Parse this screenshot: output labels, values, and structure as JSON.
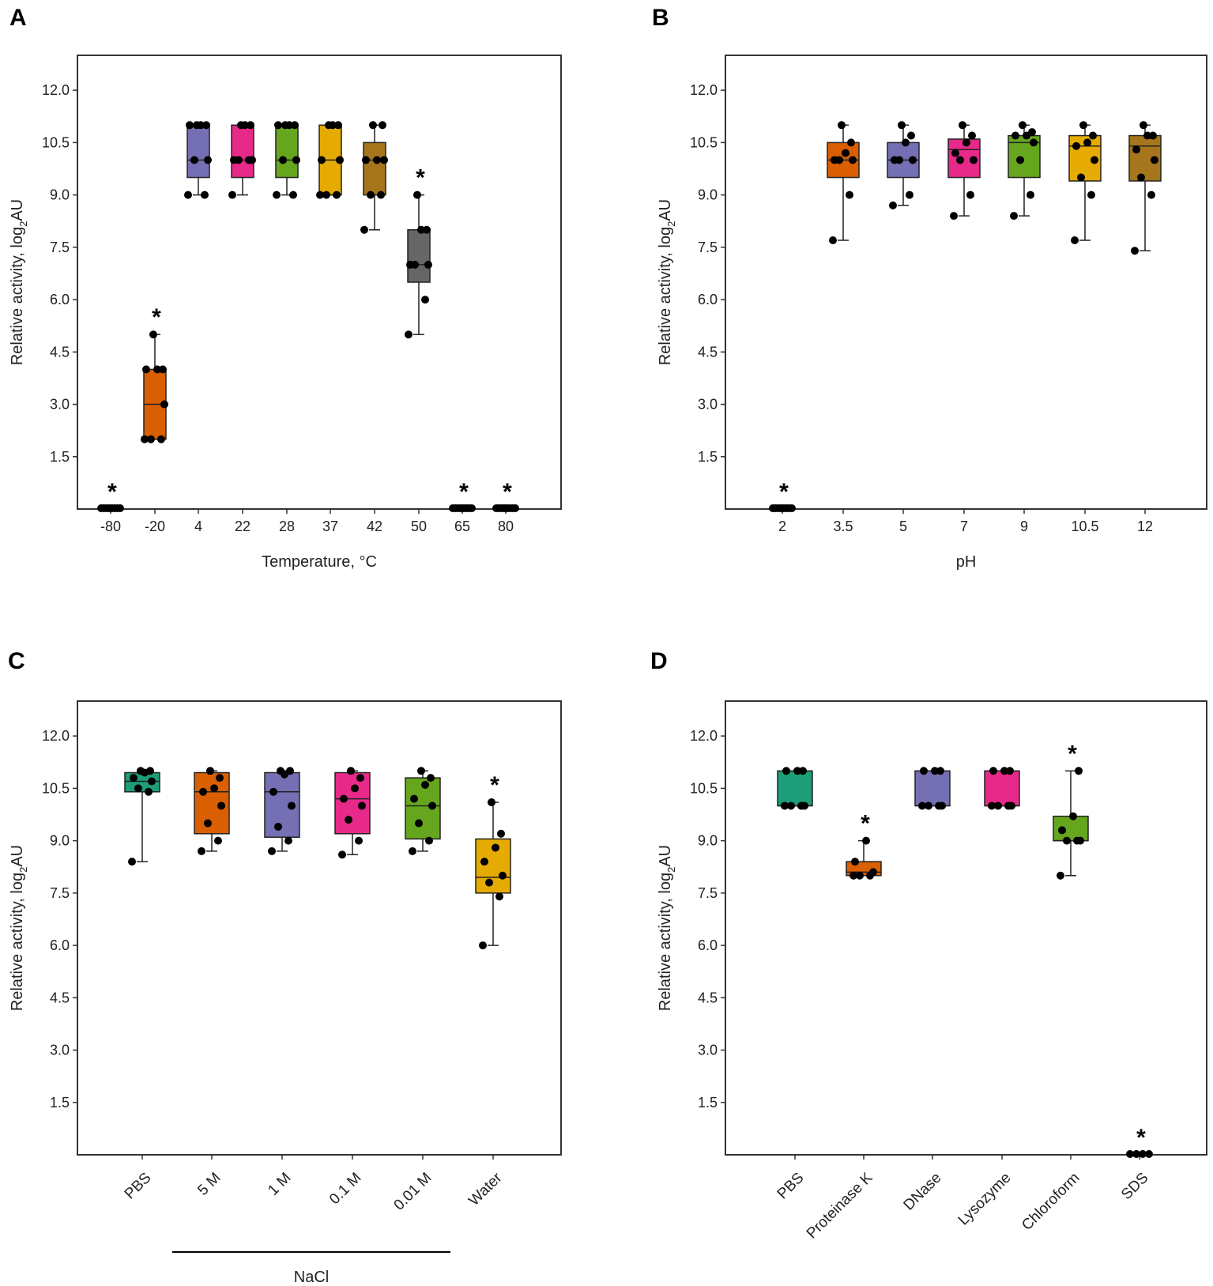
{
  "figure": {
    "colors": {
      "teal": "#1d9e78",
      "orange": "#d95f02",
      "purple": "#7570b3",
      "pink": "#e7298a",
      "green": "#66a61e",
      "yellow": "#e6ab02",
      "brown": "#a6761d",
      "gray": "#666666",
      "point": "#000000",
      "frame": "#333333"
    }
  },
  "chart_data": [
    {
      "panel": "A",
      "type": "box",
      "xlabel": "Temperature,  °C",
      "ylabel": {
        "main": "Relative  activity,  log",
        "sub": "2",
        "unit": "AU"
      },
      "ylim": [
        0,
        13
      ],
      "yticks": [
        "1.5",
        "3.0",
        "4.5",
        "6.0",
        "7.5",
        "9.0",
        "10.5",
        "12.0"
      ],
      "label_rotation": 0,
      "categories": [
        {
          "label": "-80",
          "color": "",
          "q1": 0,
          "median": 0,
          "q3": 0,
          "whisker": [
            0,
            0
          ],
          "points": [
            0,
            0,
            0,
            0,
            0,
            0,
            0,
            0
          ],
          "star": "*"
        },
        {
          "label": "-20",
          "color": "orange",
          "q1": 2,
          "median": 3,
          "q3": 4,
          "whisker": [
            2,
            5
          ],
          "points": [
            2,
            2,
            2,
            3,
            4,
            4,
            4,
            5
          ],
          "star": "*"
        },
        {
          "label": "4",
          "color": "purple",
          "q1": 9.5,
          "median": 10,
          "q3": 11,
          "whisker": [
            9,
            11
          ],
          "points": [
            9,
            9,
            10,
            10,
            11,
            11,
            11,
            11
          ],
          "star": ""
        },
        {
          "label": "22",
          "color": "pink",
          "q1": 9.5,
          "median": 10,
          "q3": 11,
          "whisker": [
            9,
            11
          ],
          "points": [
            9,
            10,
            10,
            10,
            10,
            11,
            11,
            11
          ],
          "star": ""
        },
        {
          "label": "28",
          "color": "green",
          "q1": 9.5,
          "median": 10,
          "q3": 11,
          "whisker": [
            9,
            11
          ],
          "points": [
            9,
            9,
            10,
            10,
            11,
            11,
            11,
            11
          ],
          "star": ""
        },
        {
          "label": "37",
          "color": "yellow",
          "q1": 9,
          "median": 10,
          "q3": 11,
          "whisker": [
            9,
            11
          ],
          "points": [
            9,
            9,
            9,
            10,
            10,
            11,
            11,
            11
          ],
          "star": ""
        },
        {
          "label": "42",
          "color": "brown",
          "q1": 9,
          "median": 10,
          "q3": 10.5,
          "whisker": [
            8,
            11
          ],
          "points": [
            8,
            9,
            9,
            10,
            10,
            10,
            11,
            11
          ],
          "star": ""
        },
        {
          "label": "50",
          "color": "gray",
          "q1": 6.5,
          "median": 7,
          "q3": 8,
          "whisker": [
            5,
            9
          ],
          "points": [
            5,
            6,
            7,
            7,
            7,
            8,
            8,
            9
          ],
          "star": "*"
        },
        {
          "label": "65",
          "color": "",
          "q1": 0,
          "median": 0,
          "q3": 0,
          "whisker": [
            0,
            0
          ],
          "points": [
            0,
            0,
            0,
            0,
            0,
            0,
            0,
            0
          ],
          "star": "*"
        },
        {
          "label": "80",
          "color": "",
          "q1": 0,
          "median": 0,
          "q3": 0,
          "whisker": [
            0,
            0
          ],
          "points": [
            0,
            0,
            0,
            0,
            0,
            0,
            0,
            0
          ],
          "star": "*"
        }
      ]
    },
    {
      "panel": "B",
      "type": "box",
      "xlabel": "pH",
      "ylabel": {
        "main": "Relative  activity,  log",
        "sub": "2",
        "unit": "AU"
      },
      "ylim": [
        0,
        13
      ],
      "yticks": [
        "1.5",
        "3.0",
        "4.5",
        "6.0",
        "7.5",
        "9.0",
        "10.5",
        "12.0"
      ],
      "label_rotation": 0,
      "categories": [
        {
          "label": "2",
          "color": "",
          "q1": 0,
          "median": 0,
          "q3": 0,
          "whisker": [
            0,
            0
          ],
          "points": [
            0,
            0,
            0,
            0,
            0,
            0,
            0,
            0
          ],
          "star": "*"
        },
        {
          "label": "3.5",
          "color": "orange",
          "q1": 9.5,
          "median": 10,
          "q3": 10.5,
          "whisker": [
            7.7,
            11
          ],
          "points": [
            7.7,
            9,
            10,
            10,
            10,
            10.2,
            10.5,
            11
          ],
          "star": ""
        },
        {
          "label": "5",
          "color": "purple",
          "q1": 9.5,
          "median": 10,
          "q3": 10.5,
          "whisker": [
            8.7,
            11
          ],
          "points": [
            8.7,
            9,
            10,
            10,
            10,
            10.5,
            10.7,
            11
          ],
          "star": ""
        },
        {
          "label": "7",
          "color": "pink",
          "q1": 9.5,
          "median": 10.3,
          "q3": 10.6,
          "whisker": [
            8.4,
            11
          ],
          "points": [
            8.4,
            9,
            10,
            10,
            10.2,
            10.5,
            10.7,
            11
          ],
          "star": ""
        },
        {
          "label": "9",
          "color": "green",
          "q1": 9.5,
          "median": 10.5,
          "q3": 10.7,
          "whisker": [
            8.4,
            11
          ],
          "points": [
            8.4,
            9,
            10,
            10.5,
            10.7,
            10.7,
            10.8,
            11
          ],
          "star": ""
        },
        {
          "label": "10.5",
          "color": "yellow",
          "q1": 9.4,
          "median": 10.4,
          "q3": 10.7,
          "whisker": [
            7.7,
            11
          ],
          "points": [
            7.7,
            9,
            9.5,
            10,
            10.4,
            10.5,
            10.7,
            11
          ],
          "star": ""
        },
        {
          "label": "12",
          "color": "brown",
          "q1": 9.4,
          "median": 10.4,
          "q3": 10.7,
          "whisker": [
            7.4,
            11
          ],
          "points": [
            7.4,
            9,
            9.5,
            10,
            10.3,
            10.7,
            10.7,
            11
          ],
          "star": ""
        }
      ]
    },
    {
      "panel": "C",
      "type": "box",
      "xlabel": "",
      "group_label": "NaCl",
      "ylabel": {
        "main": "Relative  activity,  log",
        "sub": "2",
        "unit": "AU"
      },
      "ylim": [
        0,
        13
      ],
      "yticks": [
        "1.5",
        "3.0",
        "4.5",
        "6.0",
        "7.5",
        "9.0",
        "10.5",
        "12.0"
      ],
      "label_rotation": -45,
      "categories": [
        {
          "label": "PBS",
          "color": "teal",
          "q1": 10.4,
          "median": 10.7,
          "q3": 10.95,
          "whisker": [
            8.4,
            11
          ],
          "points": [
            8.4,
            10.4,
            10.5,
            10.7,
            10.8,
            10.95,
            11,
            11
          ],
          "star": ""
        },
        {
          "label": "5 M",
          "color": "orange",
          "q1": 9.2,
          "median": 10.4,
          "q3": 10.95,
          "whisker": [
            8.7,
            11
          ],
          "points": [
            8.7,
            9,
            9.5,
            10,
            10.4,
            10.5,
            10.8,
            11
          ],
          "star": ""
        },
        {
          "label": "1 M",
          "color": "purple",
          "q1": 9.1,
          "median": 10.4,
          "q3": 10.95,
          "whisker": [
            8.7,
            11
          ],
          "points": [
            8.7,
            9,
            9.4,
            10,
            10.4,
            10.9,
            11,
            11
          ],
          "star": ""
        },
        {
          "label": "0.1 M",
          "color": "pink",
          "q1": 9.2,
          "median": 10.2,
          "q3": 10.95,
          "whisker": [
            8.6,
            11
          ],
          "points": [
            8.6,
            9,
            9.6,
            10,
            10.2,
            10.5,
            10.8,
            11
          ],
          "star": ""
        },
        {
          "label": "0.01 M",
          "color": "green",
          "q1": 9.05,
          "median": 10,
          "q3": 10.8,
          "whisker": [
            8.7,
            11
          ],
          "points": [
            8.7,
            9,
            9.5,
            10,
            10.2,
            10.6,
            10.8,
            11
          ],
          "star": ""
        },
        {
          "label": "Water",
          "color": "yellow",
          "q1": 7.5,
          "median": 7.95,
          "q3": 9.05,
          "whisker": [
            6,
            10.1
          ],
          "points": [
            6,
            7.4,
            7.8,
            8,
            8.4,
            8.8,
            9.2,
            10.1
          ],
          "star": "*"
        }
      ]
    },
    {
      "panel": "D",
      "type": "box",
      "xlabel": "",
      "ylabel": {
        "main": "Relative  activity,  log",
        "sub": "2",
        "unit": "AU"
      },
      "ylim": [
        0,
        13
      ],
      "yticks": [
        "1.5",
        "3.0",
        "4.5",
        "6.0",
        "7.5",
        "9.0",
        "10.5",
        "12.0"
      ],
      "label_rotation": -45,
      "categories": [
        {
          "label": "PBS",
          "color": "teal",
          "q1": 10,
          "median": 10,
          "q3": 11,
          "whisker": [
            10,
            11
          ],
          "points": [
            10,
            10,
            10,
            10,
            11,
            11,
            11
          ],
          "star": ""
        },
        {
          "label": "Proteinase K",
          "color": "orange",
          "q1": 8,
          "median": 8.1,
          "q3": 8.4,
          "whisker": [
            8,
            9
          ],
          "points": [
            8,
            8,
            8,
            8.1,
            8.4,
            9
          ],
          "star": "*"
        },
        {
          "label": "DNase",
          "color": "purple",
          "q1": 10,
          "median": 10,
          "q3": 11,
          "whisker": [
            10,
            11
          ],
          "points": [
            10,
            10,
            10,
            10,
            11,
            11,
            11
          ],
          "star": ""
        },
        {
          "label": "Lysozyme",
          "color": "pink",
          "q1": 10,
          "median": 10,
          "q3": 11,
          "whisker": [
            10,
            11
          ],
          "points": [
            10,
            10,
            10,
            10,
            11,
            11,
            11
          ],
          "star": ""
        },
        {
          "label": "Chloroform",
          "color": "green",
          "q1": 9,
          "median": 9,
          "q3": 9.7,
          "whisker": [
            8,
            11
          ],
          "points": [
            8,
            9,
            9,
            9,
            9.3,
            9.7,
            11
          ],
          "star": "*"
        },
        {
          "label": "SDS",
          "color": "",
          "q1": 0,
          "median": 0,
          "q3": 0,
          "whisker": [
            0,
            0
          ],
          "points": [
            0,
            0,
            0,
            0
          ],
          "star": "*"
        }
      ]
    }
  ]
}
